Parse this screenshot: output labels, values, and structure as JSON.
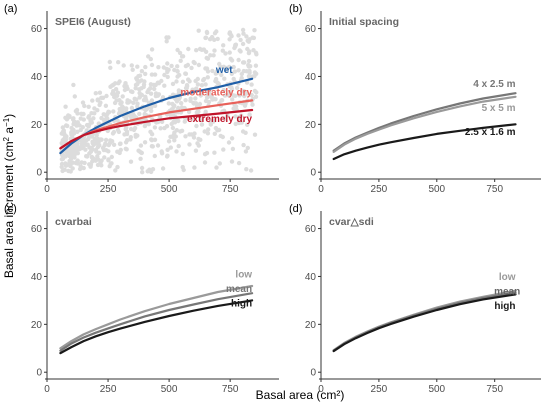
{
  "figure": {
    "xlabel": "Basal area (cm²)",
    "ylabel_main": "Basal area increment (cm",
    "ylabel_sup1": "2",
    "ylabel_mid": " a",
    "ylabel_sup2": "−1",
    "ylabel_end": ")"
  },
  "colors": {
    "wet": "#1f5fa8",
    "moderately_dry": "#e8615a",
    "extremely_dry": "#c0142a",
    "scatter": "#b3b3b3",
    "dark": "#1a1a1a",
    "mid": "#777777",
    "light": "#9a9a9a"
  },
  "chart_data": [
    {
      "panel": "(a)",
      "title": "SPEI6 (August)",
      "type": "line",
      "xlim": [
        0,
        950
      ],
      "ylim": [
        -2,
        64
      ],
      "xticks": [
        0,
        250,
        500,
        750
      ],
      "yticks": [
        0,
        20,
        40,
        60
      ],
      "grid": false,
      "legend": "inline labels",
      "scatter_points": 900,
      "series": [
        {
          "name": "wet",
          "color": "#1f5fa8",
          "x": [
            55,
            100,
            150,
            200,
            250,
            300,
            400,
            500,
            600,
            700,
            840
          ],
          "y": [
            8,
            12,
            15.5,
            18.5,
            21,
            23.5,
            27.5,
            31,
            33.5,
            35.5,
            39
          ]
        },
        {
          "name": "moderately dry",
          "color": "#e8615a",
          "x": [
            55,
            100,
            150,
            200,
            250,
            300,
            400,
            500,
            600,
            700,
            840
          ],
          "y": [
            10,
            13,
            15.5,
            17.5,
            19,
            20.5,
            23,
            25,
            26.5,
            28,
            30
          ]
        },
        {
          "name": "extremely dry",
          "color": "#c0142a",
          "x": [
            55,
            100,
            150,
            200,
            250,
            300,
            400,
            500,
            600,
            700,
            840
          ],
          "y": [
            10,
            13,
            15.5,
            17,
            18.3,
            19.3,
            21,
            22.5,
            23.5,
            24.5,
            26
          ]
        }
      ]
    },
    {
      "panel": "(b)",
      "title": "Initial spacing",
      "type": "line",
      "xlim": [
        0,
        950
      ],
      "ylim": [
        -2,
        64
      ],
      "xticks": [
        0,
        250,
        500,
        750
      ],
      "yticks": [
        0,
        20,
        40,
        60
      ],
      "grid": false,
      "legend": "inline labels",
      "series": [
        {
          "name": "4 x 2.5 m",
          "color": "#777777",
          "x": [
            55,
            100,
            150,
            200,
            250,
            300,
            400,
            500,
            600,
            700,
            840
          ],
          "y": [
            9,
            12,
            14.5,
            16.5,
            18.5,
            20.3,
            23.5,
            26.3,
            28.7,
            30.8,
            33
          ]
        },
        {
          "name": "5 x 5 m",
          "color": "#9a9a9a",
          "x": [
            55,
            100,
            150,
            200,
            250,
            300,
            400,
            500,
            600,
            700,
            840
          ],
          "y": [
            8.5,
            11.5,
            14,
            16,
            17.8,
            19.5,
            22.5,
            25.2,
            27.5,
            29.5,
            31.5
          ]
        },
        {
          "name": "2.5 x 1.6 m",
          "color": "#1a1a1a",
          "x": [
            55,
            100,
            150,
            200,
            250,
            300,
            400,
            500,
            600,
            700,
            840
          ],
          "y": [
            5.5,
            7.5,
            9,
            10.3,
            11.5,
            12.5,
            14.3,
            16,
            17.3,
            18.5,
            20
          ]
        }
      ]
    },
    {
      "panel": "(c)",
      "title": "cvarbai",
      "type": "line",
      "xlim": [
        0,
        950
      ],
      "ylim": [
        -2,
        64
      ],
      "xticks": [
        0,
        250,
        500,
        750
      ],
      "yticks": [
        0,
        20,
        40,
        60
      ],
      "grid": false,
      "legend": "inline labels",
      "series": [
        {
          "name": "low",
          "color": "#9a9a9a",
          "x": [
            55,
            100,
            150,
            200,
            250,
            300,
            400,
            500,
            600,
            700,
            840
          ],
          "y": [
            10,
            13,
            15.8,
            18,
            20,
            22,
            25.5,
            28.5,
            31,
            33.5,
            36
          ]
        },
        {
          "name": "mean",
          "color": "#777777",
          "x": [
            55,
            100,
            150,
            200,
            250,
            300,
            400,
            500,
            600,
            700,
            840
          ],
          "y": [
            9,
            12,
            14.5,
            16.5,
            18.3,
            20,
            23.3,
            26,
            28.3,
            30.5,
            33
          ]
        },
        {
          "name": "high",
          "color": "#1a1a1a",
          "x": [
            55,
            100,
            150,
            200,
            250,
            300,
            400,
            500,
            600,
            700,
            840
          ],
          "y": [
            8,
            10.5,
            13,
            15,
            16.7,
            18.2,
            21,
            23.5,
            25.7,
            27.7,
            30
          ]
        }
      ]
    },
    {
      "panel": "(d)",
      "title": "cvar△sdi",
      "type": "line",
      "xlim": [
        0,
        950
      ],
      "ylim": [
        -2,
        64
      ],
      "xticks": [
        0,
        250,
        500,
        750
      ],
      "yticks": [
        0,
        20,
        40,
        60
      ],
      "grid": false,
      "legend": "inline labels",
      "series": [
        {
          "name": "low",
          "color": "#9a9a9a",
          "x": [
            55,
            100,
            150,
            200,
            250,
            300,
            400,
            500,
            600,
            700,
            840
          ],
          "y": [
            9.2,
            12.2,
            14.8,
            17,
            19,
            20.8,
            24,
            27,
            29.5,
            31.5,
            34
          ]
        },
        {
          "name": "mean",
          "color": "#777777",
          "x": [
            55,
            100,
            150,
            200,
            250,
            300,
            400,
            500,
            600,
            700,
            840
          ],
          "y": [
            9,
            12,
            14.5,
            16.7,
            18.7,
            20.5,
            23.6,
            26.5,
            29,
            31,
            33.2
          ]
        },
        {
          "name": "high",
          "color": "#1a1a1a",
          "x": [
            55,
            100,
            150,
            200,
            250,
            300,
            400,
            500,
            600,
            700,
            840
          ],
          "y": [
            8.8,
            11.7,
            14.2,
            16.4,
            18.4,
            20.1,
            23.2,
            26,
            28.4,
            30.4,
            32.5
          ]
        }
      ]
    }
  ]
}
